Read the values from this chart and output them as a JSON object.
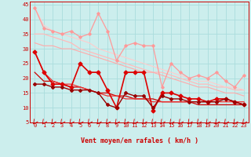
{
  "xlabel": "Vent moyen/en rafales ( km/h )",
  "ylim": [
    5,
    46
  ],
  "xlim": [
    -0.5,
    23.5
  ],
  "yticks": [
    5,
    10,
    15,
    20,
    25,
    30,
    35,
    40,
    45
  ],
  "xticks": [
    0,
    1,
    2,
    3,
    4,
    5,
    6,
    7,
    8,
    9,
    10,
    11,
    12,
    13,
    14,
    15,
    16,
    17,
    18,
    19,
    20,
    21,
    22,
    23
  ],
  "bg_color": "#cceeed",
  "grid_color": "#aadddd",
  "lines": [
    {
      "x": [
        0,
        1,
        2,
        3,
        4,
        5,
        6,
        7,
        8,
        9,
        10,
        11,
        12,
        13,
        14,
        15,
        16,
        17,
        18,
        19,
        20,
        21,
        22,
        23
      ],
      "y": [
        44,
        37,
        36,
        35,
        36,
        34,
        35,
        42,
        36,
        26,
        31,
        32,
        31,
        31,
        17,
        25,
        22,
        20,
        21,
        20,
        22,
        19,
        17,
        21
      ],
      "color": "#ff9999",
      "lw": 0.9,
      "marker": "D",
      "ms": 1.8
    },
    {
      "x": [
        0,
        1,
        2,
        3,
        4,
        5,
        6,
        7,
        8,
        9,
        10,
        11,
        12,
        13,
        14,
        15,
        16,
        17,
        18,
        19,
        20,
        21,
        22,
        23
      ],
      "y": [
        35,
        35,
        34,
        33,
        32,
        30,
        29,
        28,
        27,
        26,
        25,
        24,
        23,
        22,
        22,
        21,
        20,
        19,
        18,
        18,
        17,
        17,
        16,
        16
      ],
      "color": "#ffbbbb",
      "lw": 0.9,
      "marker": null,
      "ms": 0
    },
    {
      "x": [
        0,
        1,
        2,
        3,
        4,
        5,
        6,
        7,
        8,
        9,
        10,
        11,
        12,
        13,
        14,
        15,
        16,
        17,
        18,
        19,
        20,
        21,
        22,
        23
      ],
      "y": [
        44,
        38,
        36,
        35,
        34,
        33,
        32,
        30,
        29,
        28,
        27,
        26,
        25,
        24,
        23,
        22,
        21,
        20,
        19,
        19,
        18,
        17,
        17,
        16
      ],
      "color": "#ffcccc",
      "lw": 0.8,
      "marker": null,
      "ms": 0
    },
    {
      "x": [
        0,
        1,
        2,
        3,
        4,
        5,
        6,
        7,
        8,
        9,
        10,
        11,
        12,
        13,
        14,
        15,
        16,
        17,
        18,
        19,
        20,
        21,
        22,
        23
      ],
      "y": [
        32,
        31,
        31,
        30,
        30,
        29,
        28,
        27,
        26,
        25,
        24,
        23,
        22,
        22,
        21,
        20,
        19,
        18,
        17,
        17,
        16,
        15,
        15,
        14
      ],
      "color": "#ffaaaa",
      "lw": 0.8,
      "marker": null,
      "ms": 0
    },
    {
      "x": [
        0,
        1,
        2,
        3,
        4,
        5,
        6,
        7,
        8,
        9,
        10,
        11,
        12,
        13,
        14,
        15,
        16,
        17,
        18,
        19,
        20,
        21,
        22,
        23
      ],
      "y": [
        29,
        22,
        18,
        18,
        17,
        25,
        22,
        22,
        16,
        10,
        22,
        22,
        22,
        9,
        15,
        15,
        14,
        13,
        13,
        12,
        13,
        13,
        12,
        11
      ],
      "color": "#dd0000",
      "lw": 1.2,
      "marker": "D",
      "ms": 2.5
    },
    {
      "x": [
        0,
        1,
        2,
        3,
        4,
        5,
        6,
        7,
        8,
        9,
        10,
        11,
        12,
        13,
        14,
        15,
        16,
        17,
        18,
        19,
        20,
        21,
        22,
        23
      ],
      "y": [
        22,
        19,
        19,
        18,
        17,
        17,
        16,
        15,
        15,
        14,
        14,
        13,
        13,
        13,
        12,
        12,
        12,
        12,
        11,
        11,
        11,
        11,
        11,
        11
      ],
      "color": "#cc0000",
      "lw": 0.9,
      "marker": null,
      "ms": 0
    },
    {
      "x": [
        0,
        1,
        2,
        3,
        4,
        5,
        6,
        7,
        8,
        9,
        10,
        11,
        12,
        13,
        14,
        15,
        16,
        17,
        18,
        19,
        20,
        21,
        22,
        23
      ],
      "y": [
        29,
        22,
        19,
        18,
        18,
        17,
        16,
        15,
        14,
        14,
        13,
        13,
        13,
        12,
        12,
        12,
        12,
        12,
        12,
        12,
        12,
        12,
        12,
        12
      ],
      "color": "#ee3333",
      "lw": 0.9,
      "marker": null,
      "ms": 0
    },
    {
      "x": [
        0,
        1,
        2,
        3,
        4,
        5,
        6,
        7,
        8,
        9,
        10,
        11,
        12,
        13,
        14,
        15,
        16,
        17,
        18,
        19,
        20,
        21,
        22,
        23
      ],
      "y": [
        18,
        18,
        17,
        17,
        16,
        16,
        16,
        15,
        11,
        10,
        15,
        14,
        14,
        10,
        14,
        13,
        13,
        12,
        12,
        12,
        12,
        13,
        12,
        11
      ],
      "color": "#990000",
      "lw": 1.0,
      "marker": "D",
      "ms": 2.0
    }
  ],
  "arrow_color": "#cc0000",
  "xlabel_fontsize": 6,
  "tick_fontsize": 5
}
